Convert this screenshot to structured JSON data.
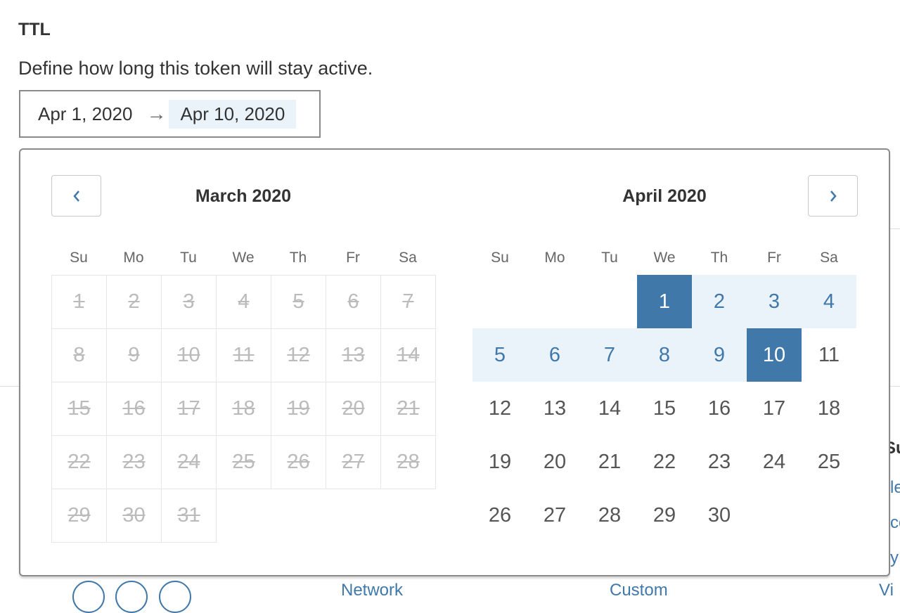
{
  "section": {
    "title": "TTL",
    "description": "Define how long this token will stay active."
  },
  "range": {
    "start": "Apr 1, 2020",
    "arrow": "→",
    "end": "Apr 10, 2020"
  },
  "calendar": {
    "prev_icon": "chevron-left",
    "next_icon": "chevron-right",
    "weekdays": [
      "Su",
      "Mo",
      "Tu",
      "We",
      "Th",
      "Fr",
      "Sa"
    ],
    "months": [
      {
        "title": "March 2020",
        "first_weekday": 0,
        "days": 31,
        "disabled": true
      },
      {
        "title": "April 2020",
        "first_weekday": 3,
        "days": 30,
        "range_start": 1,
        "range_end": 10
      }
    ],
    "colors": {
      "selected": "#4178aa",
      "in_range": "#eaf3fa",
      "disabled": "#bbbbbb"
    }
  },
  "background": {
    "heading_fragment": "Su",
    "links": [
      "le",
      "co",
      "y"
    ],
    "bottom": [
      "Network",
      "Custom",
      "Vi"
    ]
  }
}
